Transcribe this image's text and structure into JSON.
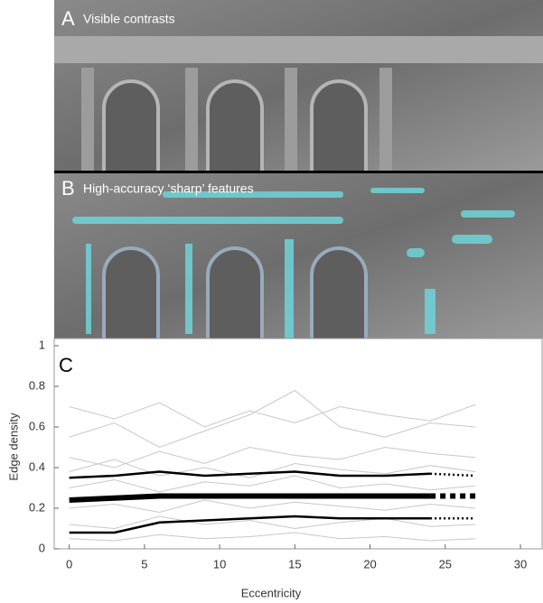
{
  "panels": [
    {
      "letter": "A",
      "caption": "Visible contrasts"
    },
    {
      "letter": "B",
      "caption": "High-accuracy ‘sharp’ features"
    }
  ],
  "chart_data": {
    "type": "line",
    "panel_letter": "C",
    "x_label": "Eccentricity",
    "y_label": "Edge density",
    "x": [
      0,
      3,
      6,
      9,
      12,
      15,
      18,
      21,
      24,
      27
    ],
    "xlim": [
      -1,
      31.5
    ],
    "xticks": [
      0,
      5,
      10,
      15,
      20,
      25,
      30
    ],
    "ylim": [
      0,
      1
    ],
    "yticks": [
      0,
      0.2,
      0.4,
      0.6,
      0.8,
      1
    ],
    "series": [
      {
        "color": "#c8c8c8",
        "linewidth": 1,
        "values": [
          0.55,
          0.62,
          0.5,
          0.58,
          0.66,
          0.78,
          0.6,
          0.55,
          0.62,
          0.6
        ]
      },
      {
        "color": "#c8c8c8",
        "linewidth": 1,
        "values": [
          0.45,
          0.4,
          0.48,
          0.42,
          0.5,
          0.46,
          0.44,
          0.5,
          0.47,
          0.45
        ]
      },
      {
        "color": "#c8c8c8",
        "linewidth": 1,
        "values": [
          0.3,
          0.34,
          0.28,
          0.33,
          0.31,
          0.36,
          0.3,
          0.32,
          0.29,
          0.31
        ]
      },
      {
        "color": "#c8c8c8",
        "linewidth": 1,
        "values": [
          0.2,
          0.22,
          0.18,
          0.24,
          0.2,
          0.23,
          0.21,
          0.19,
          0.22,
          0.2
        ]
      },
      {
        "color": "#c8c8c8",
        "linewidth": 1,
        "values": [
          0.12,
          0.1,
          0.16,
          0.12,
          0.14,
          0.1,
          0.13,
          0.15,
          0.11,
          0.12
        ]
      },
      {
        "color": "#c8c8c8",
        "linewidth": 1,
        "values": [
          0.7,
          0.64,
          0.72,
          0.6,
          0.68,
          0.62,
          0.7,
          0.66,
          0.63,
          0.71
        ]
      },
      {
        "color": "#c8c8c8",
        "linewidth": 1,
        "values": [
          0.05,
          0.04,
          0.07,
          0.05,
          0.06,
          0.08,
          0.05,
          0.06,
          0.04,
          0.05
        ]
      },
      {
        "color": "#c8c8c8",
        "linewidth": 1,
        "values": [
          0.38,
          0.44,
          0.36,
          0.4,
          0.35,
          0.42,
          0.39,
          0.37,
          0.41,
          0.38
        ]
      },
      {
        "color": "#000000",
        "linewidth": 2.5,
        "linestyle": "solid",
        "values": [
          0.35,
          0.36,
          0.38,
          0.36,
          0.37,
          0.38,
          0.36,
          0.36,
          0.37,
          null
        ]
      },
      {
        "color": "#000000",
        "linewidth": 6,
        "linestyle": "solid",
        "values": [
          0.24,
          0.25,
          0.26,
          0.26,
          0.26,
          0.26,
          0.26,
          0.26,
          0.26,
          null
        ]
      },
      {
        "color": "#000000",
        "linewidth": 2.5,
        "linestyle": "solid",
        "values": [
          0.08,
          0.08,
          0.13,
          0.14,
          0.15,
          0.16,
          0.15,
          0.15,
          0.15,
          null
        ]
      },
      {
        "color": "#000000",
        "linewidth": 2.5,
        "linestyle": "dotted",
        "values": [
          null,
          null,
          null,
          null,
          null,
          null,
          null,
          null,
          0.37,
          0.36
        ]
      },
      {
        "color": "#000000",
        "linewidth": 6,
        "linestyle": "dotted",
        "values": [
          null,
          null,
          null,
          null,
          null,
          null,
          null,
          null,
          0.26,
          0.26
        ]
      },
      {
        "color": "#000000",
        "linewidth": 2.5,
        "linestyle": "dotted",
        "values": [
          null,
          null,
          null,
          null,
          null,
          null,
          null,
          null,
          0.15,
          0.15
        ]
      }
    ]
  }
}
